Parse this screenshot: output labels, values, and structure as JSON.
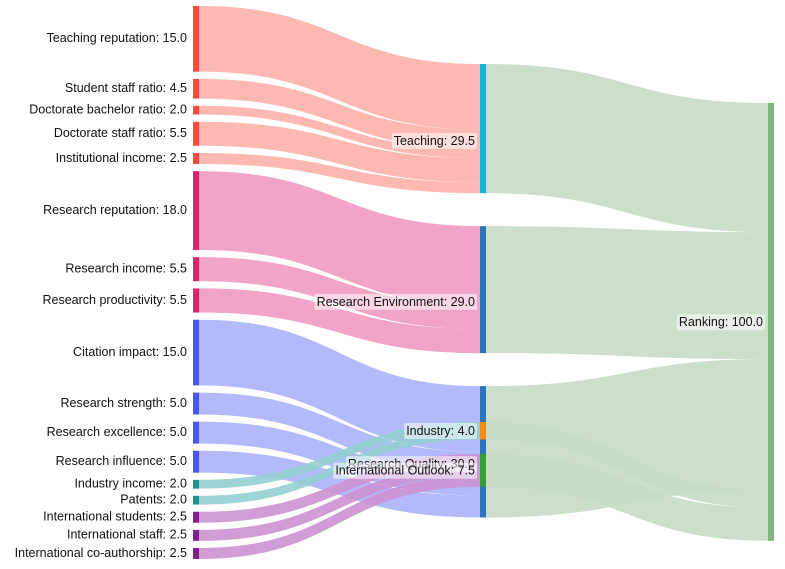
{
  "chart_data": {
    "type": "sankey",
    "title": "",
    "colors": {
      "teaching_source": "#f24b3e",
      "teaching_link": "#fcb0a8",
      "teaching": "#1cb6d4",
      "env_source": "#d6246e",
      "env_link": "#ef99c2",
      "research_environment": "#2f73b8",
      "quality_source": "#4a55ee",
      "quality_link": "#aab2fb",
      "research_quality": "#2f73b8",
      "industry_source": "#1f8f8f",
      "industry_link": "#92cfd0",
      "industry": "#f28c1a",
      "intl_source": "#7e1f8c",
      "intl_link": "#cd92d3",
      "international_outlook": "#3a9a3a",
      "ranking": "#7cb87c",
      "ranking_link": "#c5dcc5"
    },
    "nodes": [
      {
        "id": "teaching_reputation",
        "label": "Teaching reputation: 15.0",
        "value": 15.0,
        "column": 0
      },
      {
        "id": "student_staff_ratio",
        "label": "Student staff ratio: 4.5",
        "value": 4.5,
        "column": 0
      },
      {
        "id": "doctorate_bachelor_ratio",
        "label": "Doctorate bachelor ratio: 2.0",
        "value": 2.0,
        "column": 0
      },
      {
        "id": "doctorate_staff_ratio",
        "label": "Doctorate staff ratio: 5.5",
        "value": 5.5,
        "column": 0
      },
      {
        "id": "institutional_income",
        "label": "Institutional income: 2.5",
        "value": 2.5,
        "column": 0
      },
      {
        "id": "research_reputation",
        "label": "Research reputation: 18.0",
        "value": 18.0,
        "column": 0
      },
      {
        "id": "research_income",
        "label": "Research income: 5.5",
        "value": 5.5,
        "column": 0
      },
      {
        "id": "research_productivity",
        "label": "Research productivity: 5.5",
        "value": 5.5,
        "column": 0
      },
      {
        "id": "citation_impact",
        "label": "Citation impact: 15.0",
        "value": 15.0,
        "column": 0
      },
      {
        "id": "research_strength",
        "label": "Research strength: 5.0",
        "value": 5.0,
        "column": 0
      },
      {
        "id": "research_excellence",
        "label": "Research excellence: 5.0",
        "value": 5.0,
        "column": 0
      },
      {
        "id": "research_influence",
        "label": "Research influence: 5.0",
        "value": 5.0,
        "column": 0
      },
      {
        "id": "industry_income",
        "label": "Industry income: 2.0",
        "value": 2.0,
        "column": 0
      },
      {
        "id": "patents",
        "label": "Patents: 2.0",
        "value": 2.0,
        "column": 0
      },
      {
        "id": "international_students",
        "label": "International students: 2.5",
        "value": 2.5,
        "column": 0
      },
      {
        "id": "international_staff",
        "label": "International staff: 2.5",
        "value": 2.5,
        "column": 0
      },
      {
        "id": "international_coauthorship",
        "label": "International co-authorship: 2.5",
        "value": 2.5,
        "column": 0
      },
      {
        "id": "teaching",
        "label": "Teaching: 29.5",
        "value": 29.5,
        "column": 1
      },
      {
        "id": "research_environment",
        "label": "Research Environment: 29.0",
        "value": 29.0,
        "column": 1
      },
      {
        "id": "research_quality",
        "label": "Research Quality: 30.0",
        "value": 30.0,
        "column": 1
      },
      {
        "id": "industry",
        "label": "Industry: 4.0",
        "value": 4.0,
        "column": 1
      },
      {
        "id": "international_outlook",
        "label": "International Outlook: 7.5",
        "value": 7.5,
        "column": 1
      },
      {
        "id": "ranking",
        "label": "Ranking: 100.0",
        "value": 100.0,
        "column": 2
      }
    ],
    "links": [
      {
        "source": "teaching_reputation",
        "target": "teaching",
        "value": 15.0
      },
      {
        "source": "student_staff_ratio",
        "target": "teaching",
        "value": 4.5
      },
      {
        "source": "doctorate_bachelor_ratio",
        "target": "teaching",
        "value": 2.0
      },
      {
        "source": "doctorate_staff_ratio",
        "target": "teaching",
        "value": 5.5
      },
      {
        "source": "institutional_income",
        "target": "teaching",
        "value": 2.5
      },
      {
        "source": "research_reputation",
        "target": "research_environment",
        "value": 18.0
      },
      {
        "source": "research_income",
        "target": "research_environment",
        "value": 5.5
      },
      {
        "source": "research_productivity",
        "target": "research_environment",
        "value": 5.5
      },
      {
        "source": "citation_impact",
        "target": "research_quality",
        "value": 15.0
      },
      {
        "source": "research_strength",
        "target": "research_quality",
        "value": 5.0
      },
      {
        "source": "research_excellence",
        "target": "research_quality",
        "value": 5.0
      },
      {
        "source": "research_influence",
        "target": "research_quality",
        "value": 5.0
      },
      {
        "source": "industry_income",
        "target": "industry",
        "value": 2.0
      },
      {
        "source": "patents",
        "target": "industry",
        "value": 2.0
      },
      {
        "source": "international_students",
        "target": "international_outlook",
        "value": 2.5
      },
      {
        "source": "international_staff",
        "target": "international_outlook",
        "value": 2.5
      },
      {
        "source": "international_coauthorship",
        "target": "international_outlook",
        "value": 2.5
      },
      {
        "source": "teaching",
        "target": "ranking",
        "value": 29.5
      },
      {
        "source": "research_environment",
        "target": "ranking",
        "value": 29.0
      },
      {
        "source": "research_quality",
        "target": "ranking",
        "value": 30.0
      },
      {
        "source": "industry",
        "target": "ranking",
        "value": 4.0
      },
      {
        "source": "international_outlook",
        "target": "ranking",
        "value": 7.5
      }
    ]
  }
}
